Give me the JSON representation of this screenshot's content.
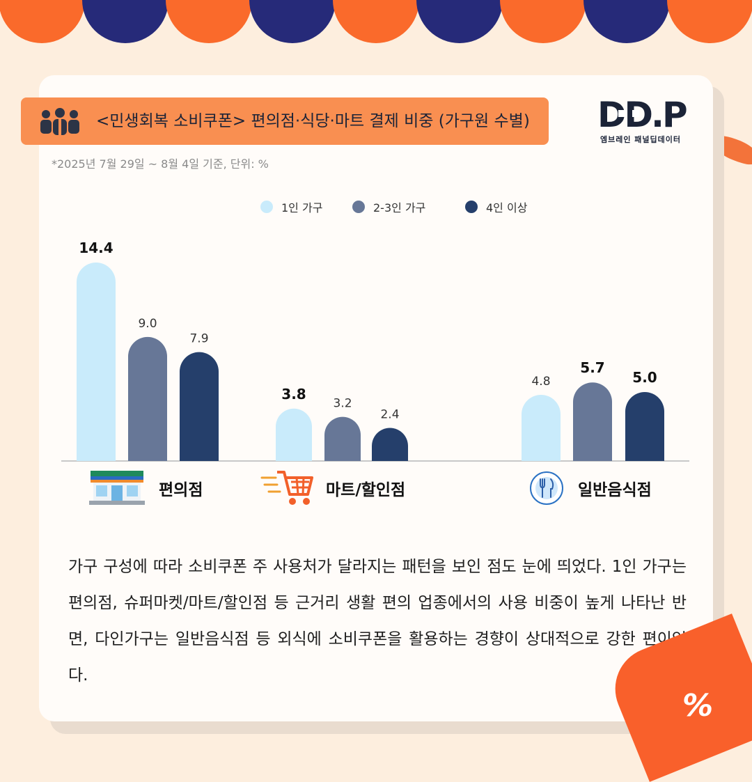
{
  "header": {
    "title": "<민생회복 소비쿠폰> 편의점·식당·마트 결제 비중 (가구원 수별)",
    "note": "*2025년 7월 29일 ~ 8월 4일 기준, 단위: %"
  },
  "logo": {
    "main": "DD.P",
    "sub": "엠브레인 패널딥데이터"
  },
  "colors": {
    "series1": "#c9ebfb",
    "series2": "#677797",
    "series3": "#253f6b",
    "accent": "#f98f51",
    "dark": "#1b2337"
  },
  "chart_data": {
    "type": "bar",
    "categories": [
      "편의점",
      "마트/할인점",
      "일반음식점"
    ],
    "series": [
      {
        "name": "1인 가구",
        "values": [
          14.4,
          3.8,
          4.8
        ]
      },
      {
        "name": "2-3인 가구",
        "values": [
          9.0,
          3.2,
          5.7
        ]
      },
      {
        "name": "4인 이상",
        "values": [
          7.9,
          2.4,
          5.0
        ]
      }
    ],
    "data_labels": [
      [
        "14.4",
        "9.0",
        "7.9"
      ],
      [
        "3.8",
        "3.2",
        "2.4"
      ],
      [
        "4.8",
        "5.7",
        "5.0"
      ]
    ],
    "bold_labels": [
      [
        "14.4"
      ],
      [
        "3.8"
      ],
      [
        "5.7",
        "5.0"
      ]
    ],
    "category_icons": [
      "convenience-store-icon",
      "shopping-cart-icon",
      "utensils-icon"
    ],
    "ylim": [
      0,
      15
    ],
    "legend": "top",
    "grid": false
  },
  "body": {
    "paragraph": "가구 구성에 따라 소비쿠폰 주 사용처가 달라지는 패턴을 보인 점도 눈에 띄었다. 1인 가구는 편의점, 슈퍼마켓/마트/할인점 등 근거리 생활 편의 업종에서의 사용 비중이 높게 나타난 반면, 다인가구는 일반음식점 등 외식에 소비쿠폰을 활용하는 경향이 상대적으로 강한 편이었다."
  },
  "badge": {
    "symbol": "%"
  }
}
